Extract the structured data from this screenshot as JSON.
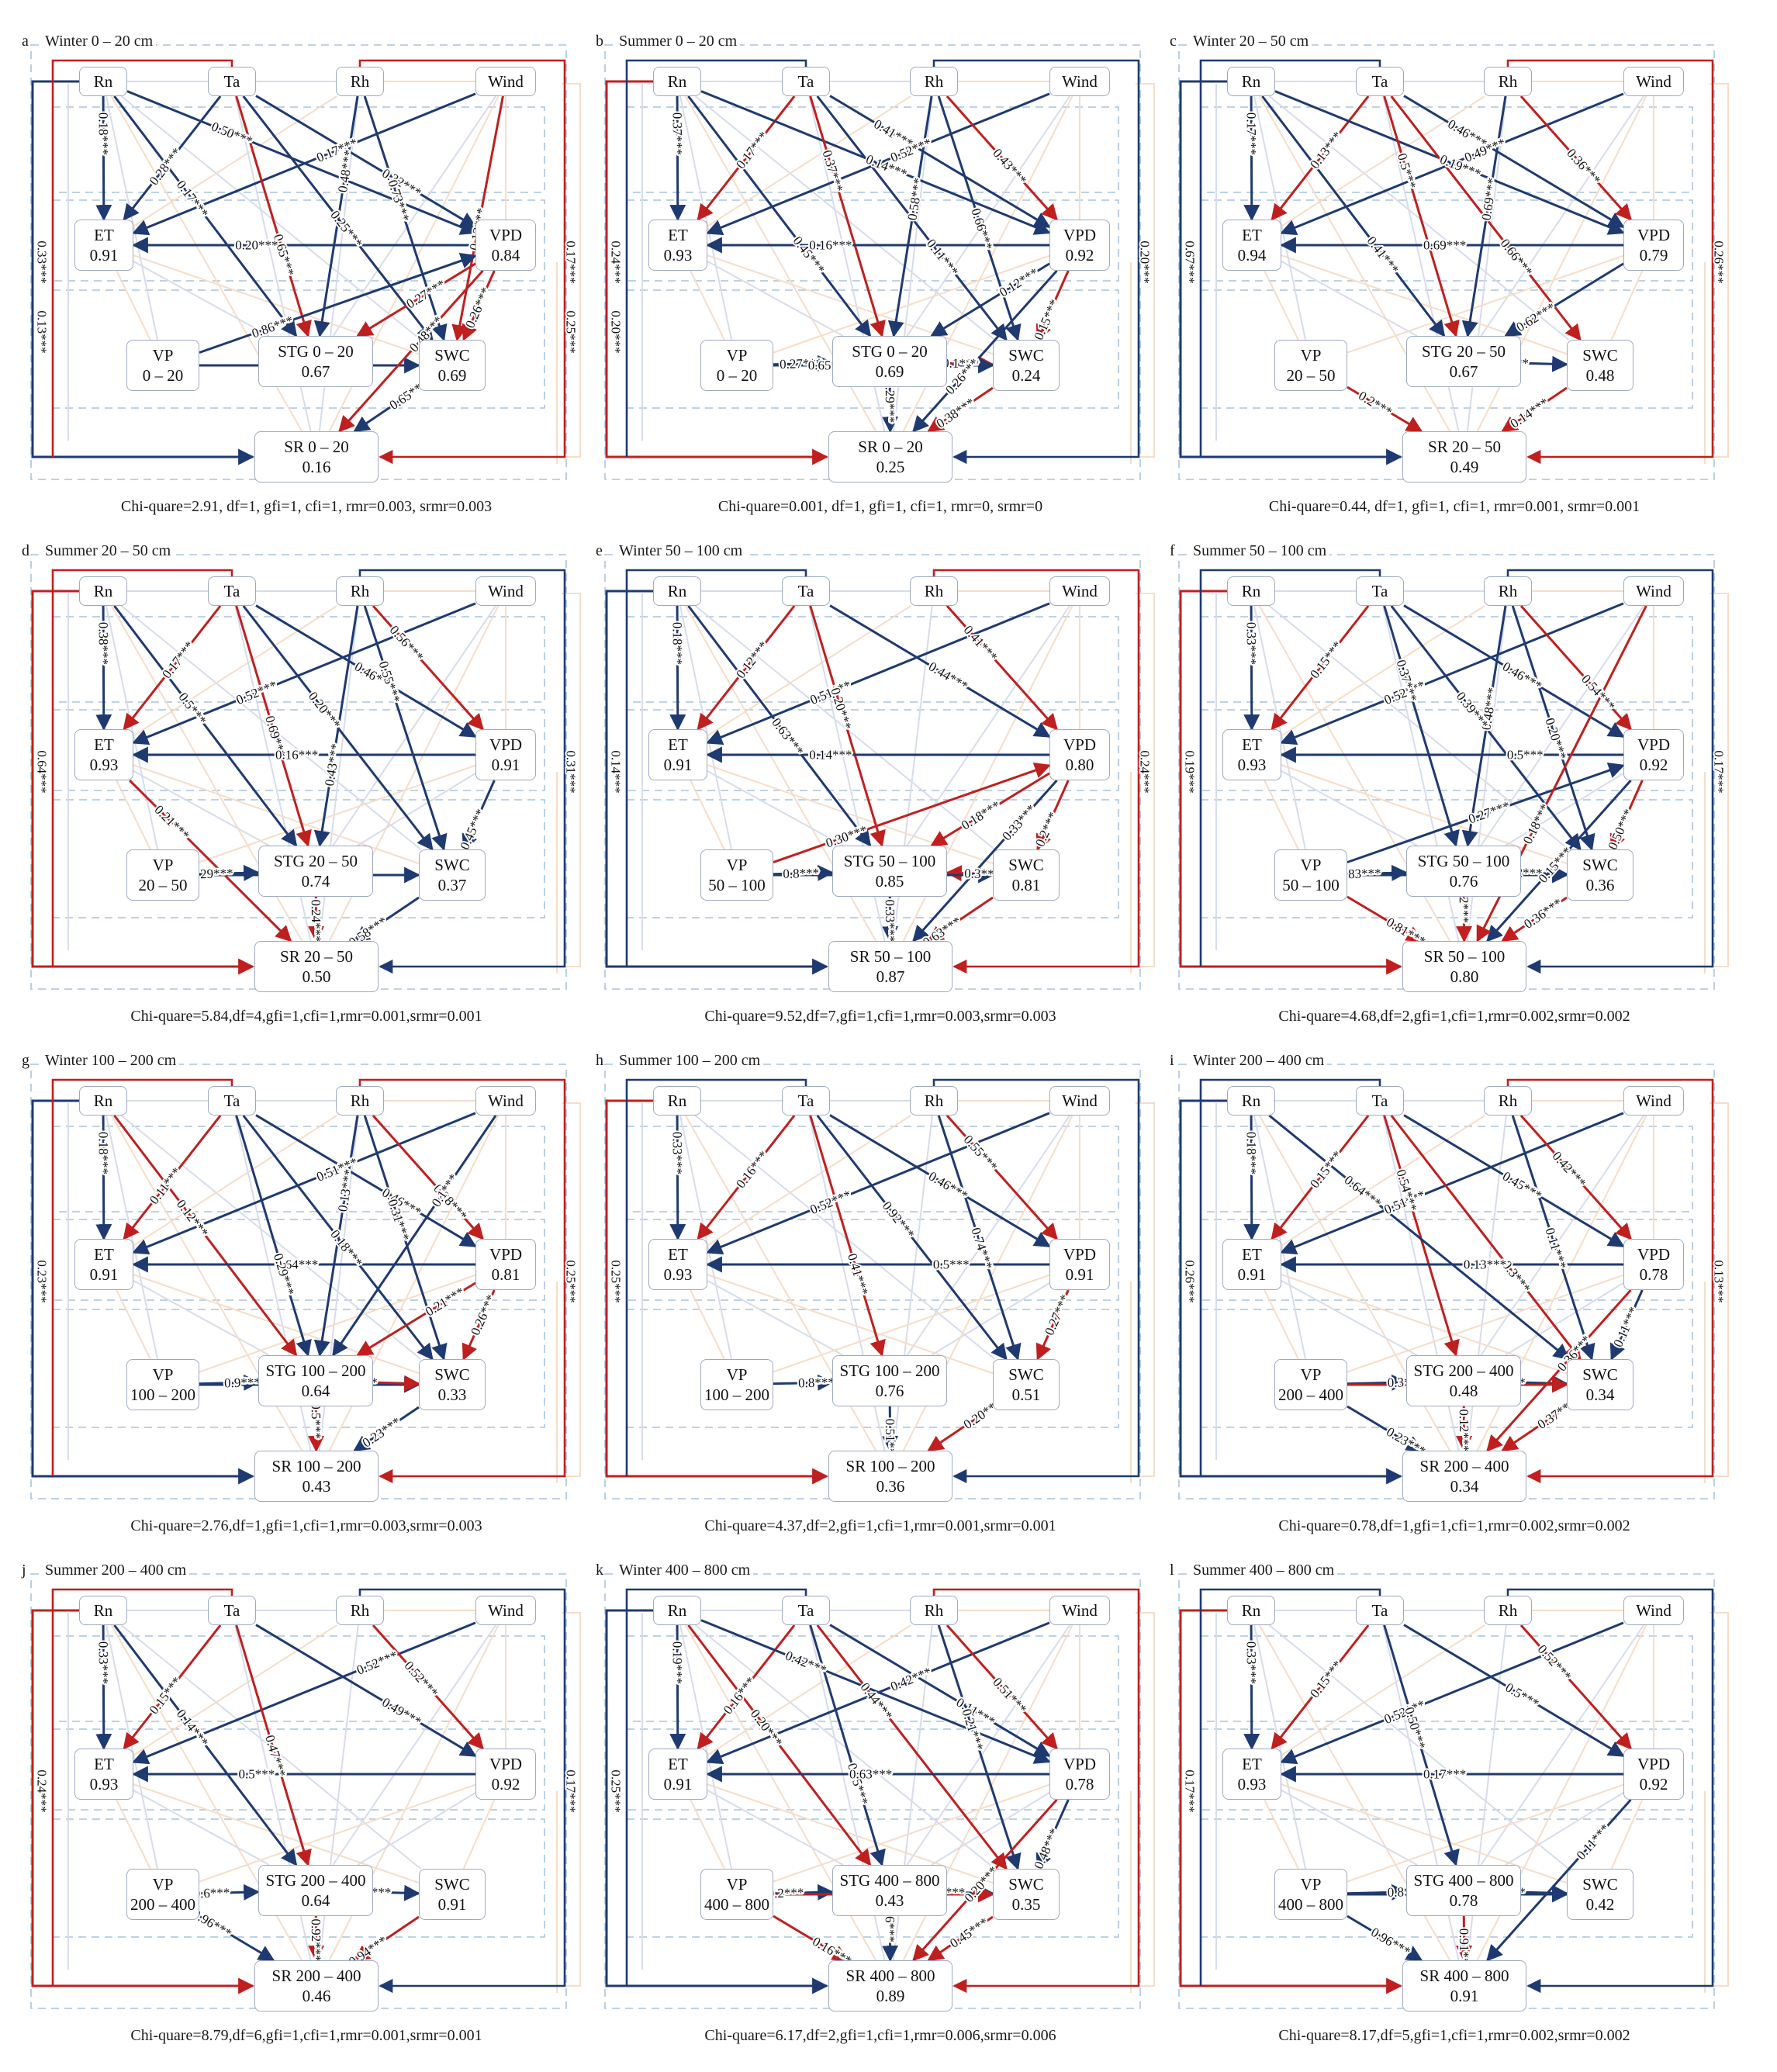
{
  "nodes": {
    "rn": "Rn",
    "ta": "Ta",
    "rh": "Rh",
    "wind": "Wind",
    "et": "ET",
    "vpd": "VPD",
    "vp": "VP",
    "stg": "STG",
    "swc": "SWC",
    "sr": "SR"
  },
  "colors": {
    "positive": "#1f3a70",
    "negative": "#c01f1f",
    "weak_positive": "#d7dcec",
    "weak_negative": "#f6ddc8",
    "box_border": "#9ea9c2",
    "dash_border": "#a9c4dc"
  },
  "panels": [
    {
      "letter": "a",
      "title": "Winter 0 – 20 cm",
      "depth": "0 – 20",
      "r2": {
        "et": "0.91",
        "vpd": "0.84",
        "stg": "0.67",
        "swc": "0.69",
        "sr": "0.16"
      },
      "coefs": [
        "0.18***",
        "0.17***",
        "0.28***",
        "0.32***",
        "0.50***",
        "0.17***",
        "0.13***",
        "0.65***",
        "0.48***",
        "0.73***",
        "0.25***",
        "0.20***",
        "0.86***",
        "0.27***",
        "0.26***",
        "0.31***",
        "0.65***",
        "0.48***",
        "0.33***",
        "0.17***",
        "0.13***",
        "0.25***"
      ],
      "fit": "Chi-quare=2.91, df=1, gfi=1, cfi=1, rmr=0.003, srmr=0.003"
    },
    {
      "letter": "b",
      "title": "Summer 0 – 20 cm",
      "depth": "0 – 20",
      "r2": {
        "et": "0.93",
        "vpd": "0.92",
        "stg": "0.69",
        "swc": "0.24",
        "sr": "0.25"
      },
      "coefs": [
        "0.37***",
        "0.17***",
        "0.14***",
        "0.11***",
        "0.41***",
        "0.52***",
        "0.43***",
        "0.45***",
        "0.37***",
        "0.58***",
        "0.66***",
        "0.16***",
        "0.12***",
        "0.27***",
        "0.1***",
        "0.15***",
        "0.65***",
        "0.29***",
        "0.38***",
        "0.26***",
        "0.24***",
        "0.20***",
        "0.20***"
      ],
      "fit": "Chi-quare=0.001, df=1, gfi=1, cfi=1, rmr=0, srmr=0"
    },
    {
      "letter": "c",
      "title": "Winter 20 – 50 cm",
      "depth": "20 – 50",
      "r2": {
        "et": "0.94",
        "vpd": "0.79",
        "stg": "0.67",
        "swc": "0.48",
        "sr": "0.49"
      },
      "coefs": [
        "0.17***",
        "0.13***",
        "0.19***",
        "0.66***",
        "0.46***",
        "0.49***",
        "0.36***",
        "0.41***",
        "0.5***",
        "0.69***",
        "0.69***",
        "0.62***",
        "0.27***",
        "0.2***",
        "0.14***",
        "0.67***",
        "0.26***"
      ],
      "fit": "Chi-quare=0.44, df=1, gfi=1, cfi=1, rmr=0.001, srmr=0.001"
    },
    {
      "letter": "d",
      "title": "Summer 20 – 50 cm",
      "depth": "20 – 50",
      "r2": {
        "et": "0.93",
        "vpd": "0.91",
        "stg": "0.74",
        "swc": "0.37",
        "sr": "0.50"
      },
      "coefs": [
        "0.38***",
        "0.17***",
        "0.46***",
        "0.52***",
        "0.56***",
        "0.5***",
        "0.69***",
        "0.43***",
        "0.55***",
        "0.20***",
        "0.16***",
        "0.45***",
        "0.29***",
        "0.53***",
        "0.24***",
        "0.58***",
        "0.21***",
        "0.64***",
        "0.31***"
      ],
      "fit": "Chi-quare=5.84,df=4,gfi=1,cfi=1,rmr=0.001,srmr=0.001"
    },
    {
      "letter": "e",
      "title": "Winter 50 – 100 cm",
      "depth": "50 – 100",
      "r2": {
        "et": "0.91",
        "vpd": "0.80",
        "stg": "0.85",
        "swc": "0.81",
        "sr": "0.87"
      },
      "coefs": [
        "0.18***",
        "0.12***",
        "0.44***",
        "0.51***",
        "0.41***",
        "0.20***",
        "0.63***",
        "0.14***",
        "0.30***",
        "0.8***",
        "0.18***",
        "0.2***",
        "0.3***",
        "0.56***",
        "0.33***",
        "0.63***",
        "0.33***",
        "0.14***",
        "0.24***"
      ],
      "fit": "Chi-quare=9.52,df=7,gfi=1,cfi=1,rmr=0.003,srmr=0.003"
    },
    {
      "letter": "f",
      "title": "Summer 50 – 100 cm",
      "depth": "50 – 100",
      "r2": {
        "et": "0.93",
        "vpd": "0.92",
        "stg": "0.76",
        "swc": "0.36",
        "sr": "0.80"
      },
      "coefs": [
        "0.33***",
        "0.15***",
        "0.46***",
        "0.52***",
        "0.37***",
        "0.48***",
        "0.20***",
        "0.54***",
        "0.5***",
        "0.39***",
        "0.27***",
        "0.50***",
        "0.83***",
        "0.32***",
        "0.19***",
        "0.81***",
        "0.22***",
        "0.36***",
        "0.15***",
        "0.18***",
        "0.19***",
        "0.17***"
      ],
      "fit": "Chi-quare=4.68,df=2,gfi=1,cfi=1,rmr=0.002,srmr=0.002"
    },
    {
      "letter": "g",
      "title": "Winter 100 – 200 cm",
      "depth": "100 – 200",
      "r2": {
        "et": "0.91",
        "vpd": "0.81",
        "stg": "0.64",
        "swc": "0.33",
        "sr": "0.43"
      },
      "coefs": [
        "0.18***",
        "0.12***",
        "0.11***",
        "0.46***",
        "0.13***",
        "0.51***",
        "0.18***",
        "0.38***",
        "0.1***",
        "0.31***",
        "0.64***",
        "0.29***",
        "0.21***",
        "0.26***",
        "0.9***",
        "0.91***",
        "0.8***",
        "0.5***",
        "0.23***",
        "0.23***",
        "0.25***"
      ],
      "fit": "Chi-quare=2.76,df=1,gfi=1,cfi=1,rmr=0.003,srmr=0.003"
    },
    {
      "letter": "h",
      "title": "Summer 100 – 200 cm",
      "depth": "100 – 200",
      "r2": {
        "et": "0.93",
        "vpd": "0.91",
        "stg": "0.76",
        "swc": "0.51",
        "sr": "0.36"
      },
      "coefs": [
        "0.33***",
        "0.16***",
        "0.46***",
        "0.52***",
        "0.55***",
        "0.92***",
        "0.74***",
        "0.41***",
        "0.5***",
        "0.27***",
        "0.8***",
        "0.51***",
        "0.20***",
        "0.25***"
      ],
      "fit": "Chi-quare=4.37,df=2,gfi=1,cfi=1,rmr=0.001,srmr=0.001"
    },
    {
      "letter": "i",
      "title": "Winter 200 – 400 cm",
      "depth": "200 – 400",
      "r2": {
        "et": "0.91",
        "vpd": "0.78",
        "stg": "0.48",
        "swc": "0.34",
        "sr": "0.34"
      },
      "coefs": [
        "0.18***",
        "0.15***",
        "0.45***",
        "0.51***",
        "0.54***",
        "0.42***",
        "0.11***",
        "0.3***",
        "0.64***",
        "0.13***",
        "0.11***",
        "0.3***",
        "0.5***",
        "0.41***",
        "0.12***",
        "0.23***",
        "0.37***",
        "0.36***",
        "0.26***",
        "0.13***"
      ],
      "fit": "Chi-quare=0.78,df=1,gfi=1,cfi=1,rmr=0.002,srmr=0.002"
    },
    {
      "letter": "j",
      "title": "Summer 200 – 400 cm",
      "depth": "200 – 400",
      "r2": {
        "et": "0.93",
        "vpd": "0.92",
        "stg": "0.64",
        "swc": "0.91",
        "sr": "0.46"
      },
      "coefs": [
        "0.33***",
        "0.14***",
        "0.15***",
        "0.49***",
        "0.52***",
        "0.52***",
        "0.47***",
        "0.5***",
        "0.6***",
        "0.3***",
        "0.92***",
        "0.94***",
        "0.96***",
        "0.24***",
        "0.17***"
      ],
      "fit": "Chi-quare=8.79,df=6,gfi=1,cfi=1,rmr=0.001,srmr=0.001"
    },
    {
      "letter": "k",
      "title": "Winter 400 – 800 cm",
      "depth": "400 – 800",
      "r2": {
        "et": "0.91",
        "vpd": "0.78",
        "stg": "0.43",
        "swc": "0.35",
        "sr": "0.89"
      },
      "coefs": [
        "0.19***",
        "0.20***",
        "0.16***",
        "0.11***",
        "0.42***",
        "0.42***",
        "0.51***",
        "0.85***",
        "0.44***",
        "0.21***",
        "0.63***",
        "0.48***",
        "0.2***",
        "0.3***",
        "0.5***",
        "0.16***",
        "0.76***",
        "0.45***",
        "0.20***",
        "0.25***"
      ],
      "fit": "Chi-quare=6.17,df=2,gfi=1,cfi=1,rmr=0.006,srmr=0.006"
    },
    {
      "letter": "l",
      "title": "Summer 400 – 800 cm",
      "depth": "400 – 800",
      "r2": {
        "et": "0.93",
        "vpd": "0.92",
        "stg": "0.78",
        "swc": "0.42",
        "sr": "0.91"
      },
      "coefs": [
        "0.33***",
        "0.15***",
        "0.5***",
        "0.52***",
        "0.52***",
        "0.50***",
        "0.17***",
        "0.8***",
        "0.9***",
        "0.92***",
        "0.96***",
        "0.91***",
        "0.11***",
        "0.17***"
      ],
      "fit": "Chi-quare=8.17,df=5,gfi=1,cfi=1,rmr=0.002,srmr=0.002"
    }
  ]
}
